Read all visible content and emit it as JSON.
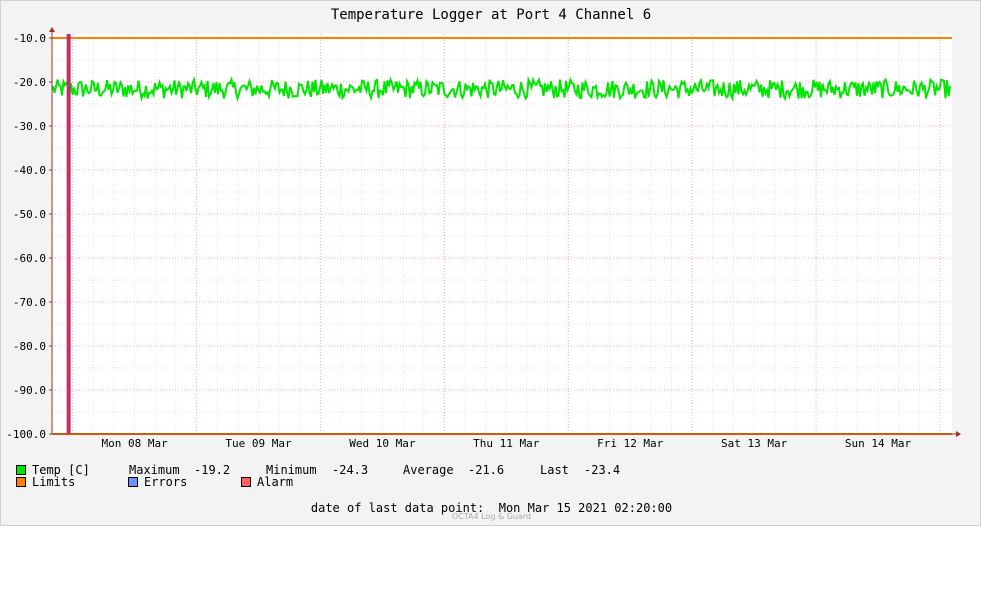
{
  "chart_data": {
    "type": "line",
    "title": "Temperature Logger at Port 4 Channel 6",
    "xlabel": "",
    "ylabel": "",
    "x_tick_labels": [
      "Mon 08 Mar",
      "Tue 09 Mar",
      "Wed 10 Mar",
      "Thu 11 Mar",
      "Fri 12 Mar",
      "Sat 13 Mar",
      "Sun 14 Mar"
    ],
    "x_range": [
      "2021-03-07 20:00",
      "2021-03-15 02:20"
    ],
    "y_tick_labels": [
      "-10.0",
      "-20.0",
      "-30.0",
      "-40.0",
      "-50.0",
      "-60.0",
      "-70.0",
      "-80.0",
      "-90.0",
      "-100.0"
    ],
    "ylim": [
      -100,
      -10
    ],
    "grid": true,
    "series": [
      {
        "name": "Temp [C]",
        "color": "#00e600",
        "min": -24.3,
        "max": -19.2,
        "mean": -21.6
      }
    ],
    "limits": {
      "color": "#ff7f00",
      "values": [
        -10,
        -100
      ]
    },
    "alarm_marker": {
      "color": "#c0306a",
      "time": "2021-03-08 00:00"
    }
  },
  "legend": {
    "temp": {
      "label": "Temp [C]",
      "color": "#00e600"
    },
    "limits": {
      "label": "Limits",
      "color": "#ff7f00"
    },
    "errors": {
      "label": "Errors",
      "color": "#7090ff"
    },
    "alarm": {
      "label": "Alarm",
      "color": "#ff6060"
    }
  },
  "stats": {
    "maximum_label": "Maximum",
    "maximum_value": "-19.2",
    "minimum_label": "Minimum",
    "minimum_value": "-24.3",
    "average_label": "Average",
    "average_value": "-21.6",
    "last_label": "Last",
    "last_value": "-23.4"
  },
  "footer": {
    "date_text": "date of last data point:  Mon Mar 15 2021 02:20:00",
    "brand": "OCTA4 Log & Guard"
  }
}
